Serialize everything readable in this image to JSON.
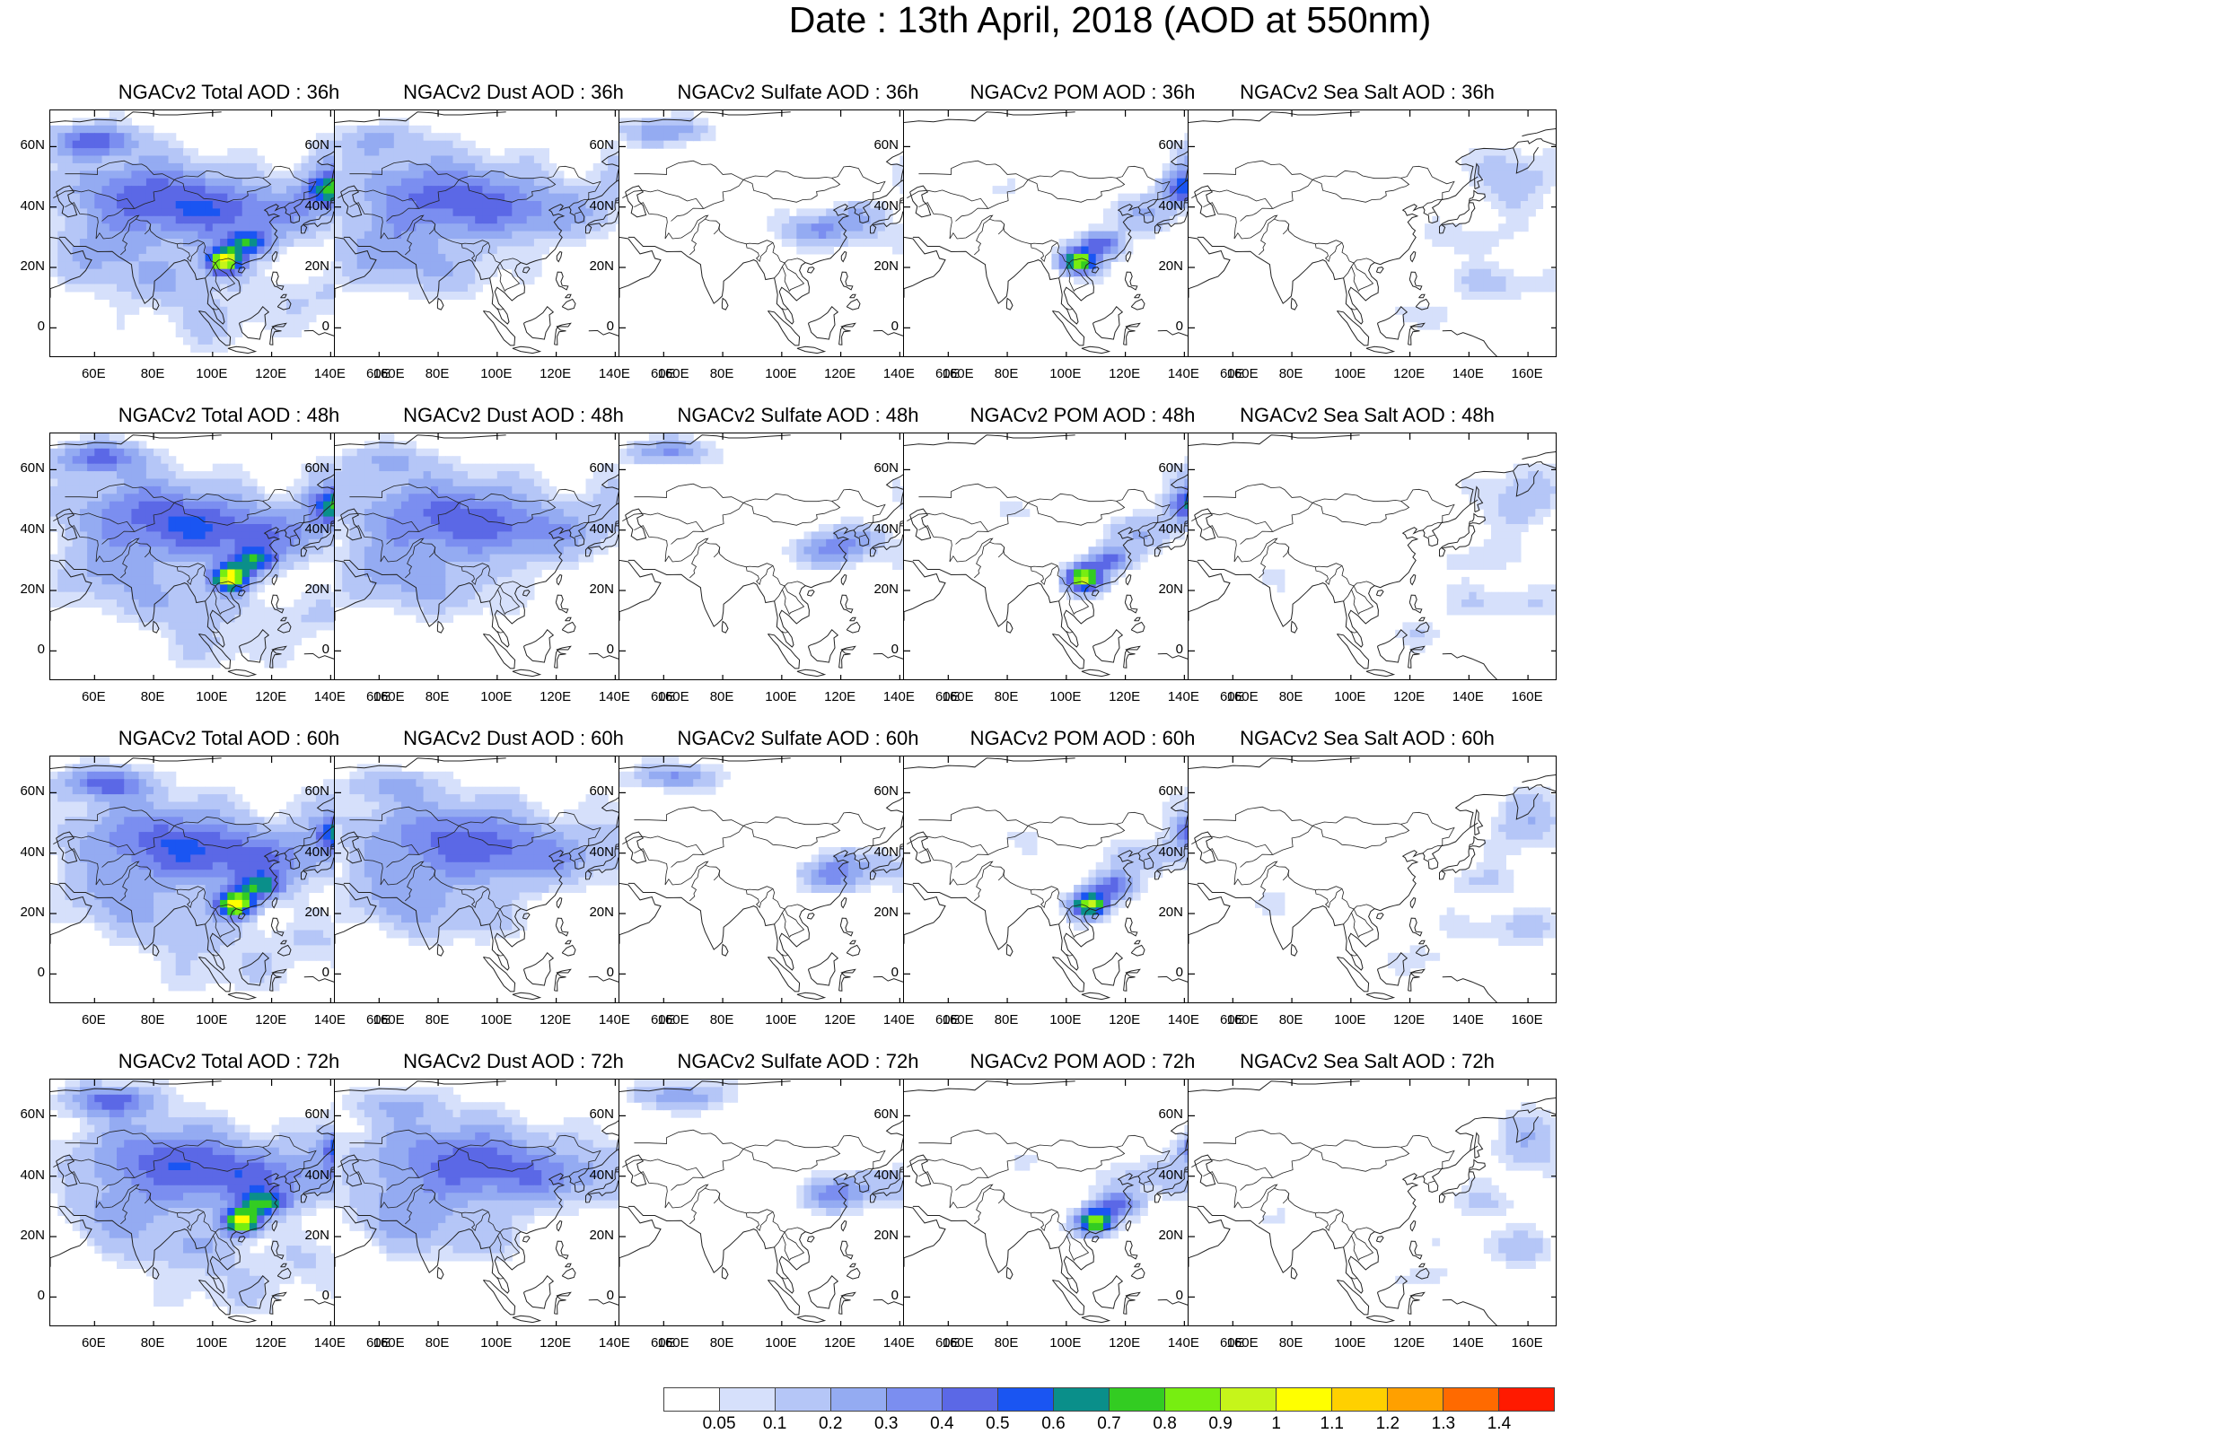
{
  "title": "Date : 13th April, 2018 (AOD at 550nm)",
  "axes": {
    "lat_ticks": [
      "60N",
      "40N",
      "20N",
      "0"
    ],
    "lon_ticks": [
      "60E",
      "80E",
      "100E",
      "120E",
      "140E",
      "160E"
    ]
  },
  "rows": [
    {
      "forecast_hour": "36h",
      "panels": [
        {
          "title": "NGACv2 Total AOD : 36h",
          "species": "total"
        },
        {
          "title": "NGACv2 Dust AOD : 36h",
          "species": "dust"
        },
        {
          "title": "NGACv2 Sulfate AOD : 36h",
          "species": "sulfate"
        },
        {
          "title": "NGACv2 POM AOD : 36h",
          "species": "pom"
        },
        {
          "title": "NGACv2 Sea Salt AOD : 36h",
          "species": "seasalt"
        }
      ]
    },
    {
      "forecast_hour": "48h",
      "panels": [
        {
          "title": "NGACv2 Total AOD : 48h",
          "species": "total"
        },
        {
          "title": "NGACv2 Dust AOD : 48h",
          "species": "dust"
        },
        {
          "title": "NGACv2 Sulfate AOD : 48h",
          "species": "sulfate"
        },
        {
          "title": "NGACv2 POM AOD : 48h",
          "species": "pom"
        },
        {
          "title": "NGACv2 Sea Salt AOD : 48h",
          "species": "seasalt"
        }
      ]
    },
    {
      "forecast_hour": "60h",
      "panels": [
        {
          "title": "NGACv2 Total AOD : 60h",
          "species": "total"
        },
        {
          "title": "NGACv2 Dust AOD : 60h",
          "species": "dust"
        },
        {
          "title": "NGACv2 Sulfate AOD : 60h",
          "species": "sulfate"
        },
        {
          "title": "NGACv2 POM AOD : 60h",
          "species": "pom"
        },
        {
          "title": "NGACv2 Sea Salt AOD : 60h",
          "species": "seasalt"
        }
      ]
    },
    {
      "forecast_hour": "72h",
      "panels": [
        {
          "title": "NGACv2 Total AOD : 72h",
          "species": "total"
        },
        {
          "title": "NGACv2 Dust AOD : 72h",
          "species": "dust"
        },
        {
          "title": "NGACv2 Sulfate AOD : 72h",
          "species": "sulfate"
        },
        {
          "title": "NGACv2 POM AOD : 72h",
          "species": "pom"
        },
        {
          "title": "NGACv2 Sea Salt  AOD : 72h",
          "species": "seasalt"
        }
      ]
    }
  ],
  "colorbar": {
    "labels": [
      "0.05",
      "0.1",
      "0.2",
      "0.3",
      "0.4",
      "0.5",
      "0.6",
      "0.7",
      "0.8",
      "0.9",
      "1",
      "1.1",
      "1.2",
      "1.3",
      "1.4"
    ],
    "colors": [
      "#ffffff",
      "#d6e0fb",
      "#b5c6f7",
      "#94abf2",
      "#7b8ef0",
      "#5b68e6",
      "#1a55f2",
      "#0a8f8a",
      "#33cc22",
      "#77ee11",
      "#c6f51a",
      "#ffff00",
      "#ffd000",
      "#ffa000",
      "#ff6a00",
      "#ff1a00"
    ]
  }
}
